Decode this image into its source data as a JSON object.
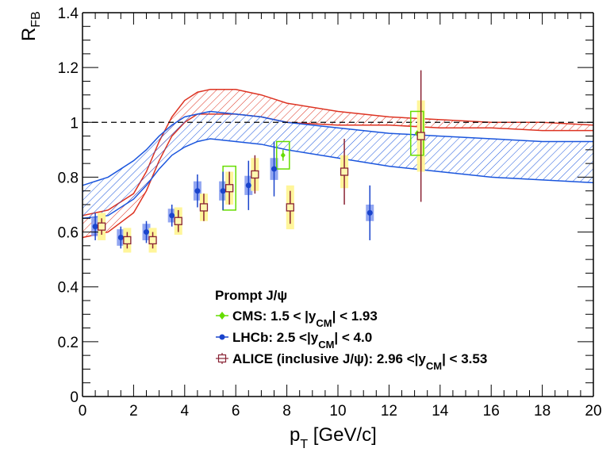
{
  "chart_data": {
    "type": "scatter",
    "title": "",
    "xlabel": "p_T [GeV/c]",
    "xlabel_main": "p",
    "xlabel_sub": "T",
    "xlabel_rest": " [GeV/c]",
    "ylabel": "R_FB",
    "ylabel_main": "R",
    "ylabel_sub": "FB",
    "xlim": [
      0,
      20
    ],
    "ylim": [
      0,
      1.4
    ],
    "x_ticks": [
      0,
      2,
      4,
      6,
      8,
      10,
      12,
      14,
      16,
      18,
      20
    ],
    "x_tick_labels": [
      "0",
      "2",
      "4",
      "6",
      "8",
      "10",
      "12",
      "14",
      "16",
      "18",
      "20"
    ],
    "y_ticks": [
      0,
      0.2,
      0.4,
      0.6,
      0.8,
      1.0,
      1.2,
      1.4
    ],
    "y_tick_labels": [
      "0",
      "0.2",
      "0.4",
      "0.6",
      "0.8",
      "1",
      "1.2",
      "1.4"
    ],
    "grid": false,
    "reference_line": {
      "y": 1.0,
      "style": "dashed",
      "color": "#000000"
    },
    "legend": {
      "placement": "bottom-center",
      "header": "Prompt J/ψ",
      "entries": [
        {
          "name": "CMS",
          "label_pre": "CMS: 1.5 < |y",
          "label_sub": "CM",
          "label_post": "| < 1.93",
          "marker": "diamond",
          "color": "#66dd00"
        },
        {
          "name": "LHCb",
          "label_pre": "LHCb: 2.5 <|y",
          "label_sub": "CM",
          "label_post": "| < 4.0",
          "marker": "circle",
          "color": "#1a44cc"
        },
        {
          "name": "ALICE",
          "label_pre": "ALICE (inclusive  J/ψ): 2.96 <|y",
          "label_sub": "CM",
          "label_post": "| < 3.53",
          "marker": "open-square",
          "color": "#882233"
        }
      ]
    },
    "bands": [
      {
        "name": "theory-band-red",
        "color": "#dd3322",
        "hatch": "diagonal",
        "x": [
          0,
          1,
          2,
          2.5,
          3,
          3.5,
          4,
          4.5,
          5,
          6,
          7,
          8,
          10,
          12,
          14,
          16,
          18,
          20
        ],
        "upper": [
          0.66,
          0.68,
          0.74,
          0.82,
          0.93,
          1.02,
          1.08,
          1.11,
          1.12,
          1.12,
          1.1,
          1.07,
          1.04,
          1.02,
          1.01,
          1.0,
          1.0,
          0.99
        ],
        "lower": [
          0.58,
          0.6,
          0.67,
          0.75,
          0.86,
          0.95,
          1.0,
          1.03,
          1.03,
          1.03,
          1.02,
          1.0,
          0.99,
          0.99,
          0.98,
          0.98,
          0.97,
          0.97
        ]
      },
      {
        "name": "theory-band-blue",
        "color": "#1a55dd",
        "hatch": "diagonal",
        "x": [
          0,
          1,
          2,
          2.5,
          3,
          3.5,
          4,
          4.5,
          5,
          6,
          7,
          8,
          10,
          12,
          14,
          16,
          18,
          20
        ],
        "upper": [
          0.77,
          0.8,
          0.86,
          0.9,
          0.95,
          0.99,
          1.02,
          1.03,
          1.04,
          1.03,
          1.02,
          1.0,
          0.98,
          0.96,
          0.95,
          0.94,
          0.93,
          0.93
        ],
        "lower": [
          0.65,
          0.66,
          0.72,
          0.77,
          0.83,
          0.88,
          0.91,
          0.93,
          0.94,
          0.93,
          0.92,
          0.9,
          0.87,
          0.84,
          0.82,
          0.8,
          0.79,
          0.78
        ]
      }
    ],
    "series": [
      {
        "name": "LHCb",
        "marker": "circle",
        "color": "#1a44cc",
        "syst_color": "#7f96ee",
        "points": [
          {
            "x": 0.5,
            "y": 0.62,
            "stat": 0.05,
            "syst": 0.035,
            "xerr": 0.0
          },
          {
            "x": 1.5,
            "y": 0.58,
            "stat": 0.04,
            "syst": 0.03
          },
          {
            "x": 2.5,
            "y": 0.6,
            "stat": 0.04,
            "syst": 0.03
          },
          {
            "x": 3.5,
            "y": 0.66,
            "stat": 0.04,
            "syst": 0.025
          },
          {
            "x": 4.5,
            "y": 0.75,
            "stat": 0.06,
            "syst": 0.035
          },
          {
            "x": 5.5,
            "y": 0.75,
            "stat": 0.07,
            "syst": 0.035
          },
          {
            "x": 6.5,
            "y": 0.77,
            "stat": 0.09,
            "syst": 0.035
          },
          {
            "x": 7.5,
            "y": 0.83,
            "stat": 0.1,
            "syst": 0.04
          },
          {
            "x": 11.25,
            "y": 0.67,
            "stat": 0.1,
            "syst": 0.03
          }
        ]
      },
      {
        "name": "ALICE",
        "marker": "open-square",
        "color": "#882233",
        "syst_color": "#fff59a",
        "points": [
          {
            "x": 0.75,
            "y": 0.62,
            "stat": 0.03,
            "syst": 0.05
          },
          {
            "x": 1.75,
            "y": 0.57,
            "stat": 0.03,
            "syst": 0.045
          },
          {
            "x": 2.75,
            "y": 0.57,
            "stat": 0.03,
            "syst": 0.045
          },
          {
            "x": 3.75,
            "y": 0.64,
            "stat": 0.04,
            "syst": 0.05
          },
          {
            "x": 4.75,
            "y": 0.69,
            "stat": 0.05,
            "syst": 0.05
          },
          {
            "x": 5.75,
            "y": 0.76,
            "stat": 0.06,
            "syst": 0.06
          },
          {
            "x": 6.75,
            "y": 0.81,
            "stat": 0.07,
            "syst": 0.06
          },
          {
            "x": 8.13,
            "y": 0.69,
            "stat": 0.06,
            "syst": 0.08
          },
          {
            "x": 10.25,
            "y": 0.82,
            "stat": 0.12,
            "syst": 0.06
          },
          {
            "x": 13.25,
            "y": 0.95,
            "stat": 0.24,
            "syst": 0.13
          }
        ]
      },
      {
        "name": "CMS",
        "marker": "diamond",
        "color": "#66dd00",
        "points": [
          {
            "x": 5.75,
            "y": 0.76,
            "stat": 0.0,
            "syst": 0.08,
            "box_halfwidth": 0.25
          },
          {
            "x": 7.85,
            "y": 0.88,
            "stat": 0.02,
            "syst": 0.05,
            "box_halfwidth": 0.25
          },
          {
            "x": 13.1,
            "y": 0.96,
            "stat": 0.0,
            "syst": 0.08,
            "box_halfwidth": 0.25
          }
        ]
      }
    ]
  }
}
